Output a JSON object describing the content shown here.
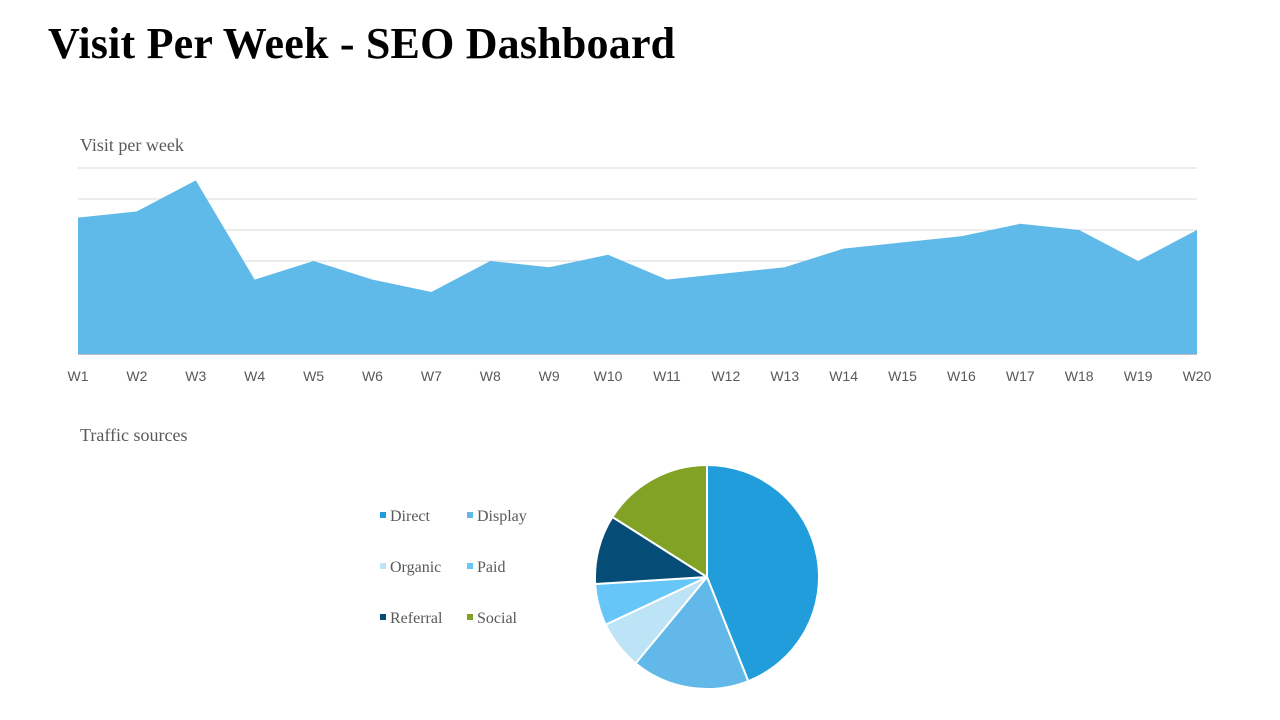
{
  "page": {
    "title": "Visit Per Week - SEO Dashboard"
  },
  "chart_data": [
    {
      "type": "area",
      "title": "Visit per week",
      "categories": [
        "W1",
        "W2",
        "W3",
        "W4",
        "W5",
        "W6",
        "W7",
        "W8",
        "W9",
        "W10",
        "W11",
        "W12",
        "W13",
        "W14",
        "W15",
        "W16",
        "W17",
        "W18",
        "W19",
        "W20"
      ],
      "values": [
        44,
        46,
        56,
        24,
        30,
        24,
        20,
        30,
        28,
        32,
        24,
        26,
        28,
        34,
        36,
        38,
        42,
        40,
        30,
        40
      ],
      "ylim": [
        0,
        60
      ],
      "gridlines": [
        30,
        40,
        50,
        60
      ],
      "color": "#5fb9e9",
      "xlabel": "",
      "ylabel": ""
    },
    {
      "type": "pie",
      "title": "Traffic sources",
      "legend_position": "left",
      "slices": [
        {
          "label": "Direct",
          "value": 44,
          "color": "#219ddc"
        },
        {
          "label": "Display",
          "value": 17,
          "color": "#62b9e9"
        },
        {
          "label": "Organic",
          "value": 7,
          "color": "#bde3f6"
        },
        {
          "label": "Paid",
          "value": 6,
          "color": "#65c6f7"
        },
        {
          "label": "Referral",
          "value": 10,
          "color": "#054c76"
        },
        {
          "label": "Social",
          "value": 16,
          "color": "#82a225"
        }
      ]
    }
  ]
}
